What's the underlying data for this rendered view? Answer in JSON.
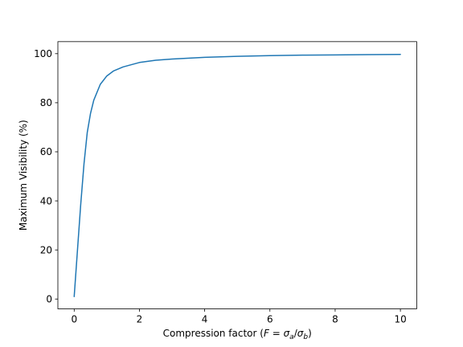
{
  "chart_data": {
    "type": "line",
    "title": "",
    "xlabel": {
      "prefix": "Compression factor (",
      "var": "F",
      "eq": " = ",
      "num_sym": "σ",
      "num_sub": "a",
      "slash": "/",
      "den_sym": "σ",
      "den_sub": "b",
      "suffix": ")"
    },
    "ylabel": "Maximum Visibility (%)",
    "xlim": [
      -0.5,
      10.5
    ],
    "ylim": [
      -4.0,
      104.9
    ],
    "xticks": [
      0,
      2,
      4,
      6,
      8,
      10
    ],
    "yticks": [
      0,
      20,
      40,
      60,
      80,
      100
    ],
    "grid": false,
    "series": [
      {
        "color": "#1f77b4",
        "x": [
          0.0,
          0.1,
          0.2,
          0.3,
          0.4,
          0.5,
          0.6,
          0.8,
          1.0,
          1.2,
          1.5,
          2.0,
          2.5,
          3.0,
          4.0,
          5.0,
          6.0,
          7.0,
          8.0,
          9.0,
          10.0
        ],
        "y": [
          1.0,
          19.8,
          38.5,
          55.0,
          67.8,
          75.6,
          81.0,
          87.5,
          90.9,
          92.9,
          94.6,
          96.4,
          97.3,
          97.8,
          98.5,
          98.9,
          99.2,
          99.4,
          99.5,
          99.6,
          99.7
        ]
      }
    ]
  }
}
